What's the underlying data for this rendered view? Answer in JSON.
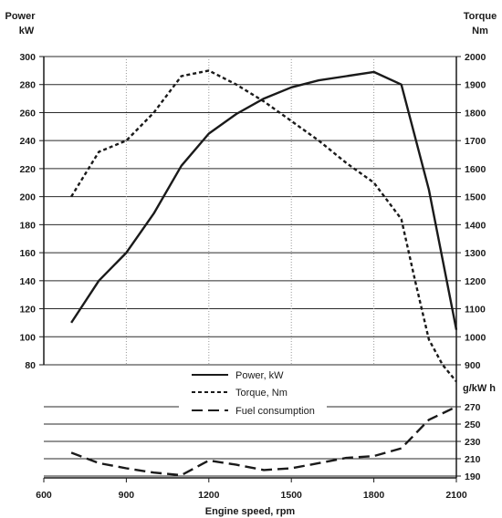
{
  "chart_data": {
    "type": "line",
    "xlabel": "Engine speed, rpm",
    "x_ticks": [
      600,
      900,
      1200,
      1500,
      1800,
      2100
    ],
    "xlim": [
      600,
      2100
    ],
    "power_axis": {
      "label_lines": [
        "Power",
        "kW"
      ],
      "ticks": [
        80,
        100,
        120,
        140,
        160,
        180,
        200,
        220,
        240,
        260,
        280,
        300
      ],
      "ylim": [
        80,
        300
      ]
    },
    "torque_axis": {
      "label_lines": [
        "Torque",
        "Nm"
      ],
      "ticks": [
        900,
        1000,
        1100,
        1200,
        1300,
        1400,
        1500,
        1600,
        1700,
        1800,
        1900,
        2000
      ],
      "ylim": [
        900,
        2000
      ]
    },
    "fuel_axis": {
      "label": "g/kW h",
      "ticks": [
        270,
        250,
        230,
        210,
        190
      ],
      "ylim": [
        190,
        270
      ]
    },
    "series": [
      {
        "name": "Power, kW",
        "axis": "power",
        "style": "solid",
        "x": [
          700,
          800,
          900,
          1000,
          1100,
          1200,
          1300,
          1400,
          1500,
          1600,
          1700,
          1800,
          1900,
          2000,
          2100
        ],
        "y": [
          110,
          140,
          160,
          188,
          222,
          245,
          259,
          270,
          278,
          283,
          286,
          289,
          280,
          205,
          105
        ]
      },
      {
        "name": "Torque, Nm",
        "axis": "torque",
        "style": "dotted",
        "x": [
          700,
          800,
          900,
          1000,
          1100,
          1200,
          1300,
          1400,
          1500,
          1600,
          1700,
          1800,
          1900,
          1950,
          2000,
          2050,
          2100
        ],
        "y": [
          1500,
          1660,
          1700,
          1800,
          1930,
          1950,
          1900,
          1840,
          1770,
          1700,
          1620,
          1550,
          1420,
          1200,
          990,
          900,
          840
        ]
      },
      {
        "name": "Fuel consumption",
        "axis": "fuel",
        "style": "dashed",
        "x": [
          700,
          800,
          900,
          1000,
          1100,
          1200,
          1300,
          1400,
          1500,
          1600,
          1700,
          1800,
          1900,
          2000,
          2100
        ],
        "y": [
          217,
          205,
          199,
          194,
          191,
          208,
          203,
          197,
          199,
          205,
          211,
          213,
          222,
          255,
          270
        ]
      }
    ]
  }
}
